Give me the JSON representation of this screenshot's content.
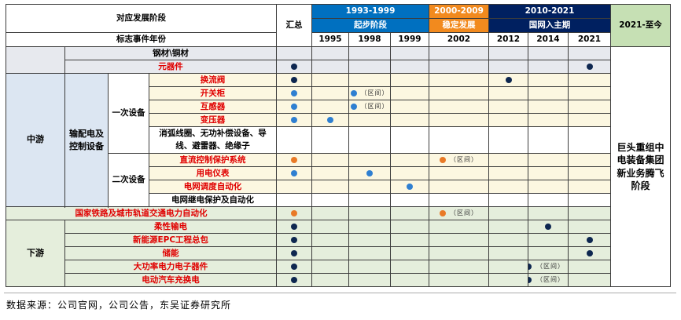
{
  "header": {
    "stage_label": "对应发展阶段",
    "event_year_label": "标志事件年份",
    "summary_label": "汇总",
    "phases": [
      {
        "years": "1993-1999",
        "name": "起步阶段"
      },
      {
        "years": "2000-2009",
        "name": "稳定发展"
      },
      {
        "years": "2010-2021",
        "name": "国网入主期"
      },
      {
        "years": "2021-至今",
        "name": ""
      }
    ],
    "columns": [
      "1995",
      "1998",
      "1999",
      "2002",
      "2012",
      "2014",
      "2021"
    ]
  },
  "sections": {
    "midstream": "中游",
    "downstream": "下游",
    "equipment": "输配电及控制设备",
    "primary": "一次设备",
    "secondary": "二次设备"
  },
  "rows": {
    "steel": "钢材\\铜材",
    "components": "元器件",
    "converter_valve": "换流阀",
    "switchgear": "开关柜",
    "transformer_instr": "互感器",
    "transformer": "变压器",
    "misc_primary": "消弧线圈、无功补偿设备、导线、避雷器、绝缘子",
    "dc_control": "直流控制保护系统",
    "meters": "用电仪表",
    "dispatch": "电网调度自动化",
    "relay": "电网继电保护及自动化",
    "rail": "国家铁路及城市轨道交通电力自动化",
    "flexible": "柔性输电",
    "epc": "新能源EPC工程总包",
    "storage": "储能",
    "power_electronics": "大功率电力电子器件",
    "ev": "电动汽车充换电"
  },
  "interval_note": "（区间）",
  "last_phase_text": "巨头重组中电装备集团新业务腾飞阶段",
  "source": "数据来源：公司官网，公司公告，东吴证券研究所",
  "colors": {
    "navy_dot": "#0e2750",
    "blue_dot": "#2f7fd1",
    "orange_dot": "#e97a27"
  }
}
